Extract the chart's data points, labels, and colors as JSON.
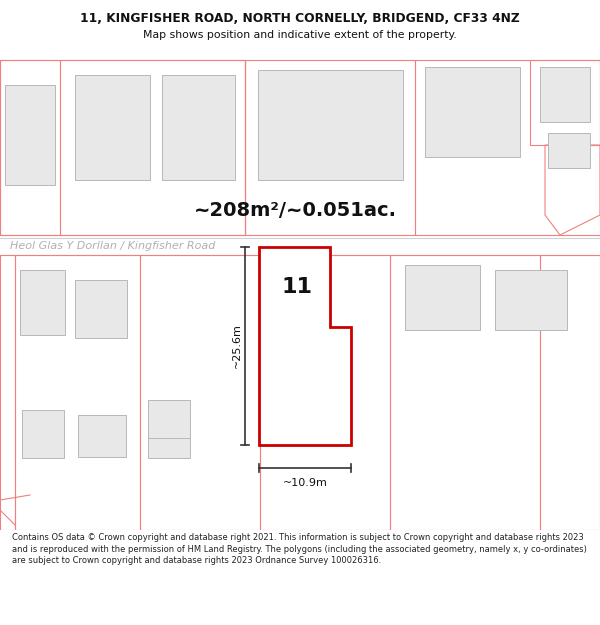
{
  "title_line1": "11, KINGFISHER ROAD, NORTH CORNELLY, BRIDGEND, CF33 4NZ",
  "title_line2": "Map shows position and indicative extent of the property.",
  "area_text": "~208m²/~0.051ac.",
  "road_label": "Heol Glas Y Dorllan / Kingfisher Road",
  "property_number": "11",
  "dim_vertical": "~25.6m",
  "dim_horizontal": "~10.9m",
  "footer_text": "Contains OS data © Crown copyright and database right 2021. This information is subject to Crown copyright and database rights 2023 and is reproduced with the permission of HM Land Registry. The polygons (including the associated geometry, namely x, y co-ordinates) are subject to Crown copyright and database rights 2023 Ordnance Survey 100026316.",
  "bg_color": "#ffffff",
  "building_fill": "#e8e8e8",
  "building_stroke": "#b8b8b8",
  "pink_stroke": "#f08080",
  "red_stroke": "#cc0000",
  "dim_line_color": "#333333",
  "road_label_color": "#b0b0b0",
  "title_color": "#111111",
  "footer_color": "#222222",
  "area_color": "#111111",
  "road_line_color": "#d0d0d0",
  "gray_line_color": "#999999"
}
